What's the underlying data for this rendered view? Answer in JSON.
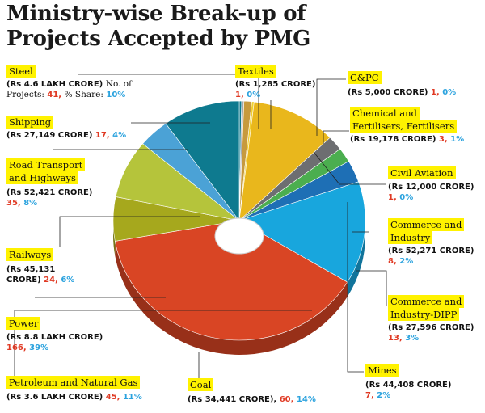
{
  "title": "Ministry-wise Break-up of Projects Accepted by PMG",
  "colors": {
    "highlight": "#fff200",
    "count": "#e03a24",
    "share": "#2aa2de"
  },
  "labels": {
    "steel": {
      "name": "Steel",
      "value": "(Rs 4.6 LAKH CRORE)",
      "note_a": "No. of",
      "note_b": "Projects:",
      "count": "41,",
      "note_c": "% Share:",
      "share": "10%"
    },
    "textiles": {
      "name": "Textiles",
      "value": "(Rs 1,285 CRORE)",
      "count": "1,",
      "share": "0%"
    },
    "cpc": {
      "name": "C&PC",
      "value": "(Rs 5,000 CRORE)",
      "count": "1,",
      "share": "0%"
    },
    "chemical": {
      "name_1": "Chemical and",
      "name_2": "Fertilisers, Fertilisers",
      "value": "(Rs 19,178 CRORE)",
      "count": "3,",
      "share": "1%"
    },
    "shipping": {
      "name": "Shipping",
      "value": "(Rs 27,149 CRORE)",
      "count": "17,",
      "share": "4%"
    },
    "road": {
      "name_1": "Road Transport",
      "name_2": "and Highways",
      "value": "(Rs 52,421 CRORE)",
      "count": "35,",
      "share": "8%"
    },
    "aviation": {
      "name": "Civil Aviation",
      "value": "(Rs 12,000 CRORE)",
      "count": "1,",
      "share": "0%"
    },
    "commerce": {
      "name_1": "Commerce and",
      "name_2": "Industry",
      "value": "(Rs 52,271 CRORE)",
      "count": "8,",
      "share": "2%"
    },
    "railways": {
      "name": "Railways",
      "value_1": "(Rs 45,131",
      "value_2": "CRORE)",
      "count": "24,",
      "share": "6%"
    },
    "dipp": {
      "name_1": "Commerce and",
      "name_2": "Industry-DIPP",
      "value": "(Rs 27,596 CRORE)",
      "count": "13,",
      "share": "3%"
    },
    "power": {
      "name": "Power",
      "value": "(Rs 8.8 LAKH CRORE)",
      "count": "166,",
      "share": "39%"
    },
    "mines": {
      "name": "Mines",
      "value": "(Rs 44,408 CRORE)",
      "count": "7,",
      "share": "2%"
    },
    "petroleum": {
      "name": "Petroleum and Natural Gas",
      "value": "(Rs 3.6 LAKH CRORE)",
      "count": "45,",
      "share": "11%"
    },
    "coal": {
      "name": "Coal",
      "value": "(Rs 34,441 CRORE),",
      "count": "60,",
      "share": "14%"
    }
  },
  "chart_data": {
    "type": "pie",
    "title": "Ministry-wise Break-up of Projects Accepted by PMG",
    "series": [
      {
        "name": "Textiles",
        "value": 0.3,
        "count": 1,
        "share_label": "0%",
        "color": "#0e7a8f"
      },
      {
        "name": "C&PC",
        "value": 0.3,
        "count": 1,
        "share_label": "0%",
        "color": "#a9a9a9"
      },
      {
        "name": "Chemical and Fertilisers, Fertilisers",
        "value": 1,
        "count": 3,
        "share_label": "1%",
        "color": "#c79a3d"
      },
      {
        "name": "Civil Aviation",
        "value": 0.3,
        "count": 1,
        "share_label": "0%",
        "color": "#f0cf30"
      },
      {
        "name": "Petroleum and Natural Gas",
        "value": 11,
        "count": 45,
        "share_label": "11%",
        "color": "#e9b71c"
      },
      {
        "name": "Commerce and Industry",
        "value": 2,
        "count": 8,
        "share_label": "2%",
        "color": "#6d6e71"
      },
      {
        "name": "Mines",
        "value": 2,
        "count": 7,
        "share_label": "2%",
        "color": "#4bae4f"
      },
      {
        "name": "Commerce and Industry-DIPP",
        "value": 3,
        "count": 13,
        "share_label": "3%",
        "color": "#1e6fb5"
      },
      {
        "name": "Coal",
        "value": 14,
        "count": 60,
        "share_label": "14%",
        "color": "#18a6dd"
      },
      {
        "name": "Power",
        "value": 39,
        "count": 166,
        "share_label": "39%",
        "color": "#d94524"
      },
      {
        "name": "Railways",
        "value": 6,
        "count": 24,
        "share_label": "6%",
        "color": "#a6a81d"
      },
      {
        "name": "Road Transport and Highways",
        "value": 8,
        "count": 35,
        "share_label": "8%",
        "color": "#b5c43b"
      },
      {
        "name": "Shipping",
        "value": 4,
        "count": 17,
        "share_label": "4%",
        "color": "#4ba2d6"
      },
      {
        "name": "Steel",
        "value": 10,
        "count": 41,
        "share_label": "10%",
        "color": "#0e7a8f"
      }
    ]
  }
}
